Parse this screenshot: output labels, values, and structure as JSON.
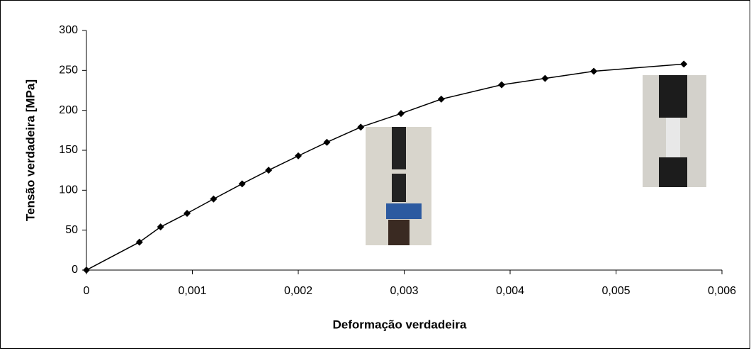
{
  "chart_data": {
    "type": "line",
    "xlabel": "Deformação verdadeira",
    "ylabel": "Tensão verdadeira [MPa]",
    "x": [
      0,
      0.0005,
      0.0007,
      0.00095,
      0.0012,
      0.00147,
      0.00172,
      0.002,
      0.00227,
      0.00259,
      0.00297,
      0.00335,
      0.00392,
      0.00433,
      0.00479,
      0.00564
    ],
    "values": [
      0,
      35,
      54,
      71,
      89,
      108,
      125,
      143,
      160,
      179,
      196,
      214,
      232,
      240,
      249,
      258
    ],
    "color": "#000000",
    "xlim": [
      0,
      0.006
    ],
    "xticks": [
      0,
      {
        "value": 0.001,
        "label": "0,001"
      },
      {
        "value": 0.002,
        "label": "0,002"
      },
      {
        "value": 0.003,
        "label": "0,003"
      },
      {
        "value": 0.004,
        "label": "0,004"
      },
      {
        "value": 0.005,
        "label": "0,005"
      },
      {
        "value": 0.006,
        "label": "0,006"
      }
    ],
    "ylim": [
      0,
      300
    ],
    "yticks": [
      0,
      50,
      100,
      150,
      200,
      250,
      300
    ],
    "grid": false
  }
}
